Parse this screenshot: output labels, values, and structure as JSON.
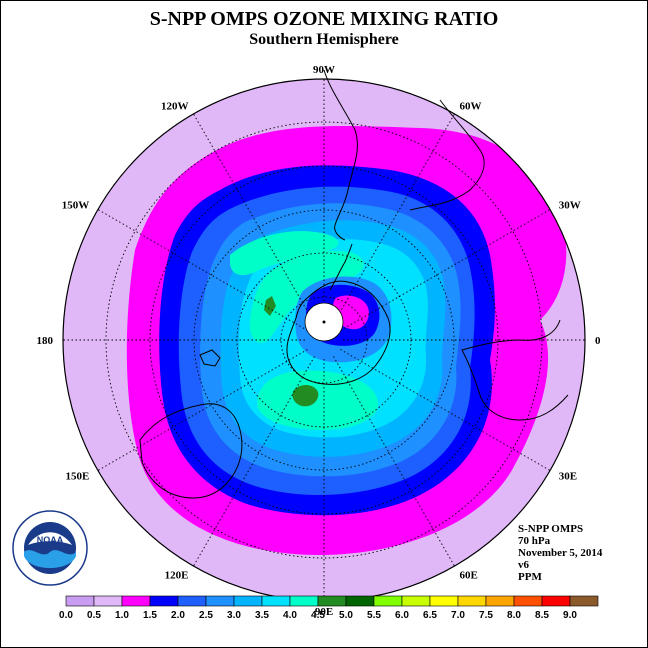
{
  "title": "S-NPP OMPS OZONE MIXING RATIO",
  "subtitle": "Southern Hemisphere",
  "longitude_labels": [
    {
      "text": "90W",
      "lon": -90
    },
    {
      "text": "60W",
      "lon": -60
    },
    {
      "text": "30W",
      "lon": -30
    },
    {
      "text": "0",
      "lon": 0
    },
    {
      "text": "30E",
      "lon": 30
    },
    {
      "text": "60E",
      "lon": 60
    },
    {
      "text": "90E",
      "lon": 90
    },
    {
      "text": "120E",
      "lon": 120
    },
    {
      "text": "150E",
      "lon": 150
    },
    {
      "text": "180",
      "lon": 180
    },
    {
      "text": "150W",
      "lon": -150
    },
    {
      "text": "120W",
      "lon": -120
    }
  ],
  "info": {
    "instrument": "S-NPP OMPS",
    "level": "70 hPa",
    "date": "November 5, 2014",
    "version": "v6",
    "units": "PPM"
  },
  "logo": {
    "text": "NOAA",
    "agency": "NATIONAL OCEANIC AND ATMOSPHERIC ADMINISTRATION",
    "dept": "U.S. DEPARTMENT OF COMMERCE"
  },
  "colorbar": {
    "labels": [
      "0.0",
      "0.5",
      "1.0",
      "1.5",
      "2.0",
      "2.5",
      "3.0",
      "3.5",
      "4.0",
      "4.5",
      "5.0",
      "5.5",
      "6.0",
      "6.5",
      "7.0",
      "7.5",
      "8.0",
      "8.5",
      "9.0"
    ],
    "colors": [
      "#c89cf0",
      "#e0b8f8",
      "#ff00ff",
      "#0000ff",
      "#1e5fff",
      "#1e90ff",
      "#00b4ff",
      "#00e0ff",
      "#00ffc8",
      "#228b22",
      "#006400",
      "#7fff00",
      "#c8ff00",
      "#ffff00",
      "#ffd700",
      "#ffa500",
      "#ff5000",
      "#ff0000",
      "#8b5a2b"
    ]
  },
  "colors": {
    "ring_0_5_1_0": "#e0b8f8",
    "ring_1_0_1_5": "#ff00ff",
    "ring_1_5_2_0": "#0000ff",
    "ring_2_0_2_5": "#1e5fff",
    "ring_2_5_3_0": "#1e90ff",
    "ring_3_0_3_5": "#00b4ff",
    "ring_3_5_4_0": "#00e0ff",
    "ring_4_0_4_5": "#00ffc8",
    "patch_4_5_5_0": "#228b22"
  }
}
